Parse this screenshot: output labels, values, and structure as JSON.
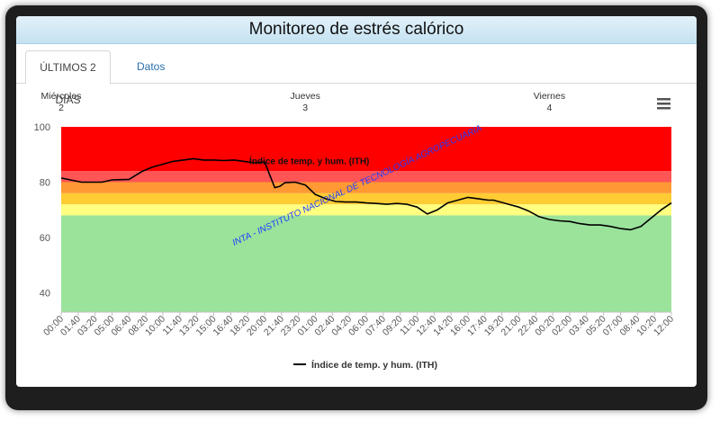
{
  "header": {
    "title": "Monitoreo de estrés calórico"
  },
  "tabs": [
    {
      "label": "ÚLTIMOS 2 DÍAS",
      "active": true
    },
    {
      "label": "Datos",
      "active": false
    }
  ],
  "menu_icon": "hamburger-menu-icon",
  "chart_data": {
    "type": "line",
    "title": "",
    "xlabel": "",
    "ylabel": "",
    "ylim": [
      33,
      100
    ],
    "y_ticks": [
      40,
      60,
      80,
      100
    ],
    "grid": false,
    "legend_position": "bottom-center",
    "top_axis": [
      {
        "day": "Miércoles",
        "date": "2"
      },
      {
        "day": "Jueves",
        "date": "3"
      },
      {
        "day": "Viernes",
        "date": "4"
      }
    ],
    "x_tick_labels": [
      "00:00",
      "01:40",
      "03:20",
      "05:00",
      "06:40",
      "08:20",
      "10:00",
      "11:40",
      "13:20",
      "15:00",
      "16:40",
      "18:20",
      "20:00",
      "21:40",
      "23:20",
      "01:00",
      "02:40",
      "04:20",
      "06:00",
      "07:40",
      "09:20",
      "11:00",
      "12:40",
      "14:20",
      "16:00",
      "17:40",
      "19:20",
      "21:00",
      "22:40",
      "00:20",
      "02:00",
      "03:40",
      "05:20",
      "07:00",
      "08:40",
      "10:20",
      "12:00"
    ],
    "zones": [
      {
        "from": 33,
        "to": 68,
        "color": "#9be39b"
      },
      {
        "from": 68,
        "to": 72,
        "color": "#ffff80"
      },
      {
        "from": 72,
        "to": 76,
        "color": "#ffcc33"
      },
      {
        "from": 76,
        "to": 80,
        "color": "#ff9933"
      },
      {
        "from": 80,
        "to": 84,
        "color": "#ff5555"
      },
      {
        "from": 84,
        "to": 100,
        "color": "#ff0000"
      }
    ],
    "series": [
      {
        "name": "Índice de temp. y hum. (ITH)",
        "color": "#000000",
        "x_hours": [
          0,
          2,
          4,
          5,
          6.67,
          8,
          9,
          10,
          11,
          12,
          13,
          14,
          15,
          16,
          17,
          18,
          19,
          20,
          21,
          21.5,
          22,
          23,
          24,
          25,
          26,
          27,
          28,
          29,
          30,
          31,
          32,
          33,
          34,
          35,
          36,
          37,
          38,
          38.5,
          39,
          40,
          41,
          42,
          42.5,
          43,
          44,
          45,
          46,
          47,
          48,
          49,
          50,
          51,
          52,
          53,
          54,
          55,
          56,
          57,
          58,
          59,
          60
        ],
        "values": [
          81.5,
          80,
          80,
          80.8,
          81,
          84,
          85.5,
          86.5,
          87.5,
          88,
          88.5,
          88,
          88,
          87.8,
          88,
          87.5,
          87,
          87.3,
          78,
          78.5,
          79.8,
          80,
          79,
          75.5,
          74,
          73,
          72.8,
          72.8,
          72.5,
          72.3,
          72,
          72.3,
          72,
          71,
          68.5,
          70,
          72.5,
          73,
          73.5,
          74.5,
          74,
          73.5,
          73.5,
          73,
          72,
          71,
          69.5,
          67.5,
          66.5,
          66,
          65.8,
          65,
          64.5,
          64.5,
          64,
          63.2,
          62.8,
          64,
          67,
          70,
          72.5
        ]
      }
    ],
    "watermark": "INTA - INSTITUTO NACIONAL DE TECNOLOGÍA AGROPECUARIA"
  }
}
